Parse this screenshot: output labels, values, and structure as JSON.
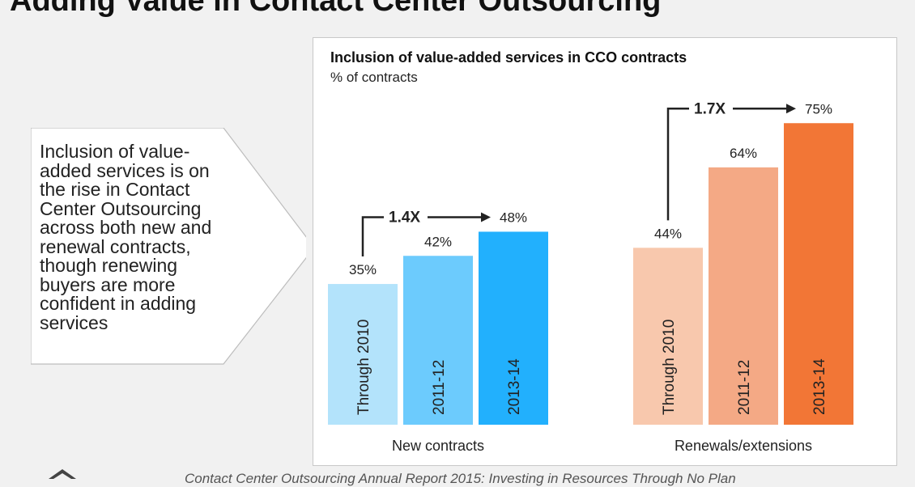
{
  "page": {
    "title": "Adding Value in Contact Center Outsourcing",
    "callout": "Inclusion of value-added services is on the rise in Contact Center Outsourcing across both new and renewal contracts, though renewing buyers are more confident in adding services",
    "source": "Contact Center Outsourcing Annual Report 2015: Investing in Resources Through No Plan"
  },
  "chart_data": {
    "type": "bar",
    "title": "Inclusion of value-added services in CCO contracts",
    "subtitle": "% of contracts",
    "ylabel": "",
    "ylim": [
      0,
      100
    ],
    "grid": false,
    "groups": [
      {
        "name": "New contracts",
        "categories": [
          "Through 2010",
          "2011-12",
          "2013-14"
        ],
        "values": [
          35,
          42,
          48
        ],
        "labels": [
          "35%",
          "42%",
          "48%"
        ],
        "colors": [
          "#b3e3fb",
          "#6ccbfd",
          "#22b0fd"
        ],
        "growth": "1.4X"
      },
      {
        "name": "Renewals/extensions",
        "categories": [
          "Through 2010",
          "2011-12",
          "2013-14"
        ],
        "values": [
          44,
          64,
          75
        ],
        "labels": [
          "44%",
          "64%",
          "75%"
        ],
        "colors": [
          "#f8c8ad",
          "#f4a985",
          "#f27636"
        ],
        "growth": "1.7X"
      }
    ]
  }
}
